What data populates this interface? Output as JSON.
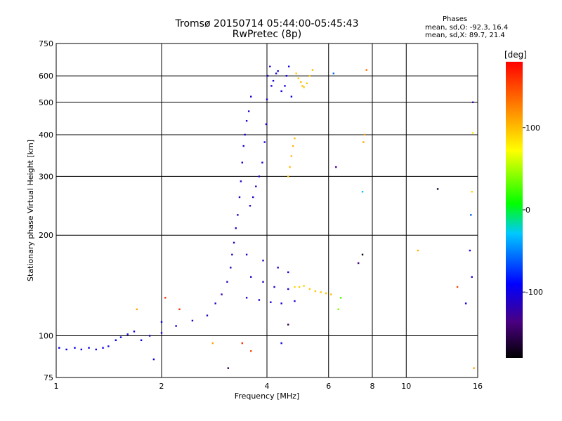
{
  "header": {
    "title_line1": "Tromsø 20150714 05:44:00-05:45:43",
    "title_line2": "RwPretec (8p)"
  },
  "stats": {
    "heading": "Phases",
    "line_o": "mean, sd,O: -92.3, 16.4",
    "line_x": "mean, sd,X:  89.7, 21.4"
  },
  "colorbar": {
    "label": "[deg]",
    "range": [
      -180,
      180
    ],
    "ticks": [
      {
        "value": 100,
        "label": "100"
      },
      {
        "value": 0,
        "label": "0"
      },
      {
        "value": -100,
        "label": "-100"
      }
    ]
  },
  "chart_data": {
    "type": "scatter",
    "title": "Tromsø 20150714 05:44:00-05:45:43",
    "subtitle": "RwPretec (8p)",
    "xlabel": "Frequency [MHz]",
    "ylabel": "Stationary phase Virtual Height [km]",
    "x_scale": "log",
    "y_scale": "log",
    "xlim": [
      1,
      16
    ],
    "ylim": [
      75,
      750
    ],
    "x_ticks": [
      1,
      2,
      4,
      6,
      8,
      10,
      16
    ],
    "x_tick_labels": [
      "1",
      "2",
      "4",
      "6",
      "8",
      "10",
      "16"
    ],
    "y_ticks": [
      75,
      100,
      200,
      300,
      400,
      500,
      600,
      750
    ],
    "y_tick_labels": [
      "75",
      "100",
      "200",
      "300",
      "400",
      "500",
      "600",
      "750"
    ],
    "grid": true,
    "color_encodes": "phase [deg]",
    "series": [
      {
        "values": [
          [
            1.02,
            92,
            -95
          ],
          [
            1.07,
            91,
            -95
          ],
          [
            1.13,
            92,
            -95
          ],
          [
            1.18,
            91,
            -95
          ],
          [
            1.24,
            92,
            -95
          ],
          [
            1.3,
            91,
            -95
          ],
          [
            1.36,
            92,
            -95
          ],
          [
            1.41,
            93,
            -95
          ],
          [
            1.48,
            97,
            -95
          ],
          [
            1.53,
            99,
            -100
          ],
          [
            1.6,
            101,
            -100
          ],
          [
            1.67,
            103,
            -100
          ],
          [
            1.75,
            97,
            -100
          ],
          [
            1.85,
            100,
            -105
          ],
          [
            2.0,
            102,
            -105
          ],
          [
            2.2,
            107,
            -110
          ],
          [
            2.45,
            111,
            -110
          ],
          [
            2.7,
            115,
            -115
          ],
          [
            2.85,
            125,
            -115
          ],
          [
            2.97,
            133,
            -120
          ],
          [
            3.08,
            145,
            -118
          ],
          [
            3.15,
            160,
            -115
          ],
          [
            3.18,
            175,
            -115
          ],
          [
            3.22,
            190,
            -112
          ],
          [
            3.26,
            210,
            -112
          ],
          [
            3.3,
            230,
            -110
          ],
          [
            3.34,
            260,
            -110
          ],
          [
            3.37,
            290,
            -108
          ],
          [
            3.4,
            330,
            -108
          ],
          [
            3.43,
            370,
            -106
          ],
          [
            3.46,
            400,
            -106
          ],
          [
            3.5,
            440,
            -105
          ],
          [
            3.55,
            470,
            -105
          ],
          [
            3.6,
            520,
            -105
          ],
          [
            3.58,
            245,
            -110
          ],
          [
            3.65,
            260,
            -110
          ],
          [
            3.72,
            280,
            -110
          ],
          [
            3.8,
            300,
            -108
          ],
          [
            3.88,
            330,
            -108
          ],
          [
            3.94,
            380,
            -106
          ],
          [
            3.98,
            430,
            -106
          ],
          [
            4.0,
            510,
            -106
          ],
          [
            4.02,
            600,
            -105
          ],
          [
            4.08,
            640,
            -104
          ],
          [
            4.12,
            560,
            -104
          ],
          [
            4.17,
            580,
            -104
          ],
          [
            4.25,
            610,
            -102
          ],
          [
            4.3,
            620,
            -102
          ],
          [
            4.4,
            540,
            -100
          ],
          [
            4.5,
            560,
            -100
          ],
          [
            4.55,
            600,
            -100
          ],
          [
            4.62,
            640,
            -98
          ],
          [
            4.7,
            520,
            -98
          ],
          [
            3.5,
            130,
            -110
          ],
          [
            3.8,
            128,
            -110
          ],
          [
            4.1,
            126,
            -108
          ],
          [
            4.4,
            125,
            -108
          ],
          [
            4.8,
            127,
            -106
          ],
          [
            3.6,
            150,
            -110
          ],
          [
            3.9,
            145,
            -110
          ],
          [
            4.2,
            140,
            -108
          ],
          [
            4.6,
            138,
            -106
          ],
          [
            3.5,
            175,
            -110
          ],
          [
            3.9,
            168,
            -110
          ],
          [
            4.3,
            160,
            -108
          ],
          [
            4.6,
            155,
            -106
          ]
        ]
      },
      {
        "values": [
          [
            4.85,
            610,
            95
          ],
          [
            4.92,
            590,
            95
          ],
          [
            5.0,
            575,
            100
          ],
          [
            5.05,
            560,
            100
          ],
          [
            5.1,
            555,
            95
          ],
          [
            5.2,
            570,
            95
          ],
          [
            5.3,
            600,
            98
          ],
          [
            5.4,
            625,
            100
          ],
          [
            4.6,
            300,
            100
          ],
          [
            4.65,
            320,
            100
          ],
          [
            4.7,
            345,
            102
          ],
          [
            4.75,
            370,
            102
          ],
          [
            4.8,
            390,
            100
          ],
          [
            4.8,
            140,
            90
          ],
          [
            4.95,
            140,
            92
          ],
          [
            5.1,
            141,
            92
          ],
          [
            5.3,
            138,
            95
          ],
          [
            5.5,
            136,
            95
          ],
          [
            5.7,
            135,
            98
          ],
          [
            5.9,
            134,
            98
          ],
          [
            6.1,
            133,
            100
          ]
        ]
      },
      {
        "values": [
          [
            6.4,
            120,
            40
          ],
          [
            6.5,
            130,
            25
          ],
          [
            7.3,
            165,
            -140
          ],
          [
            7.5,
            270,
            -30
          ],
          [
            7.7,
            625,
            130
          ],
          [
            7.6,
            400,
            110
          ],
          [
            7.55,
            380,
            110
          ],
          [
            6.3,
            320,
            -130
          ],
          [
            6.2,
            610,
            -60
          ],
          [
            7.5,
            175,
            -170
          ],
          [
            10.8,
            180,
            105
          ],
          [
            12.3,
            275,
            -165
          ],
          [
            14.0,
            140,
            150
          ],
          [
            14.8,
            125,
            -100
          ],
          [
            15.2,
            180,
            -100
          ],
          [
            15.3,
            230,
            -60
          ],
          [
            15.4,
            270,
            90
          ],
          [
            15.5,
            405,
            80
          ],
          [
            15.5,
            500,
            -130
          ],
          [
            15.4,
            150,
            -110
          ],
          [
            15.6,
            80,
            110
          ],
          [
            3.1,
            80,
            -150
          ],
          [
            3.4,
            95,
            160
          ],
          [
            3.6,
            90,
            150
          ],
          [
            4.4,
            95,
            -100
          ],
          [
            4.6,
            108,
            -150
          ],
          [
            1.7,
            120,
            110
          ],
          [
            2.05,
            130,
            160
          ],
          [
            1.9,
            85,
            -100
          ],
          [
            2.0,
            110,
            -100
          ],
          [
            2.25,
            120,
            160
          ],
          [
            2.8,
            95,
            110
          ]
        ]
      }
    ]
  }
}
